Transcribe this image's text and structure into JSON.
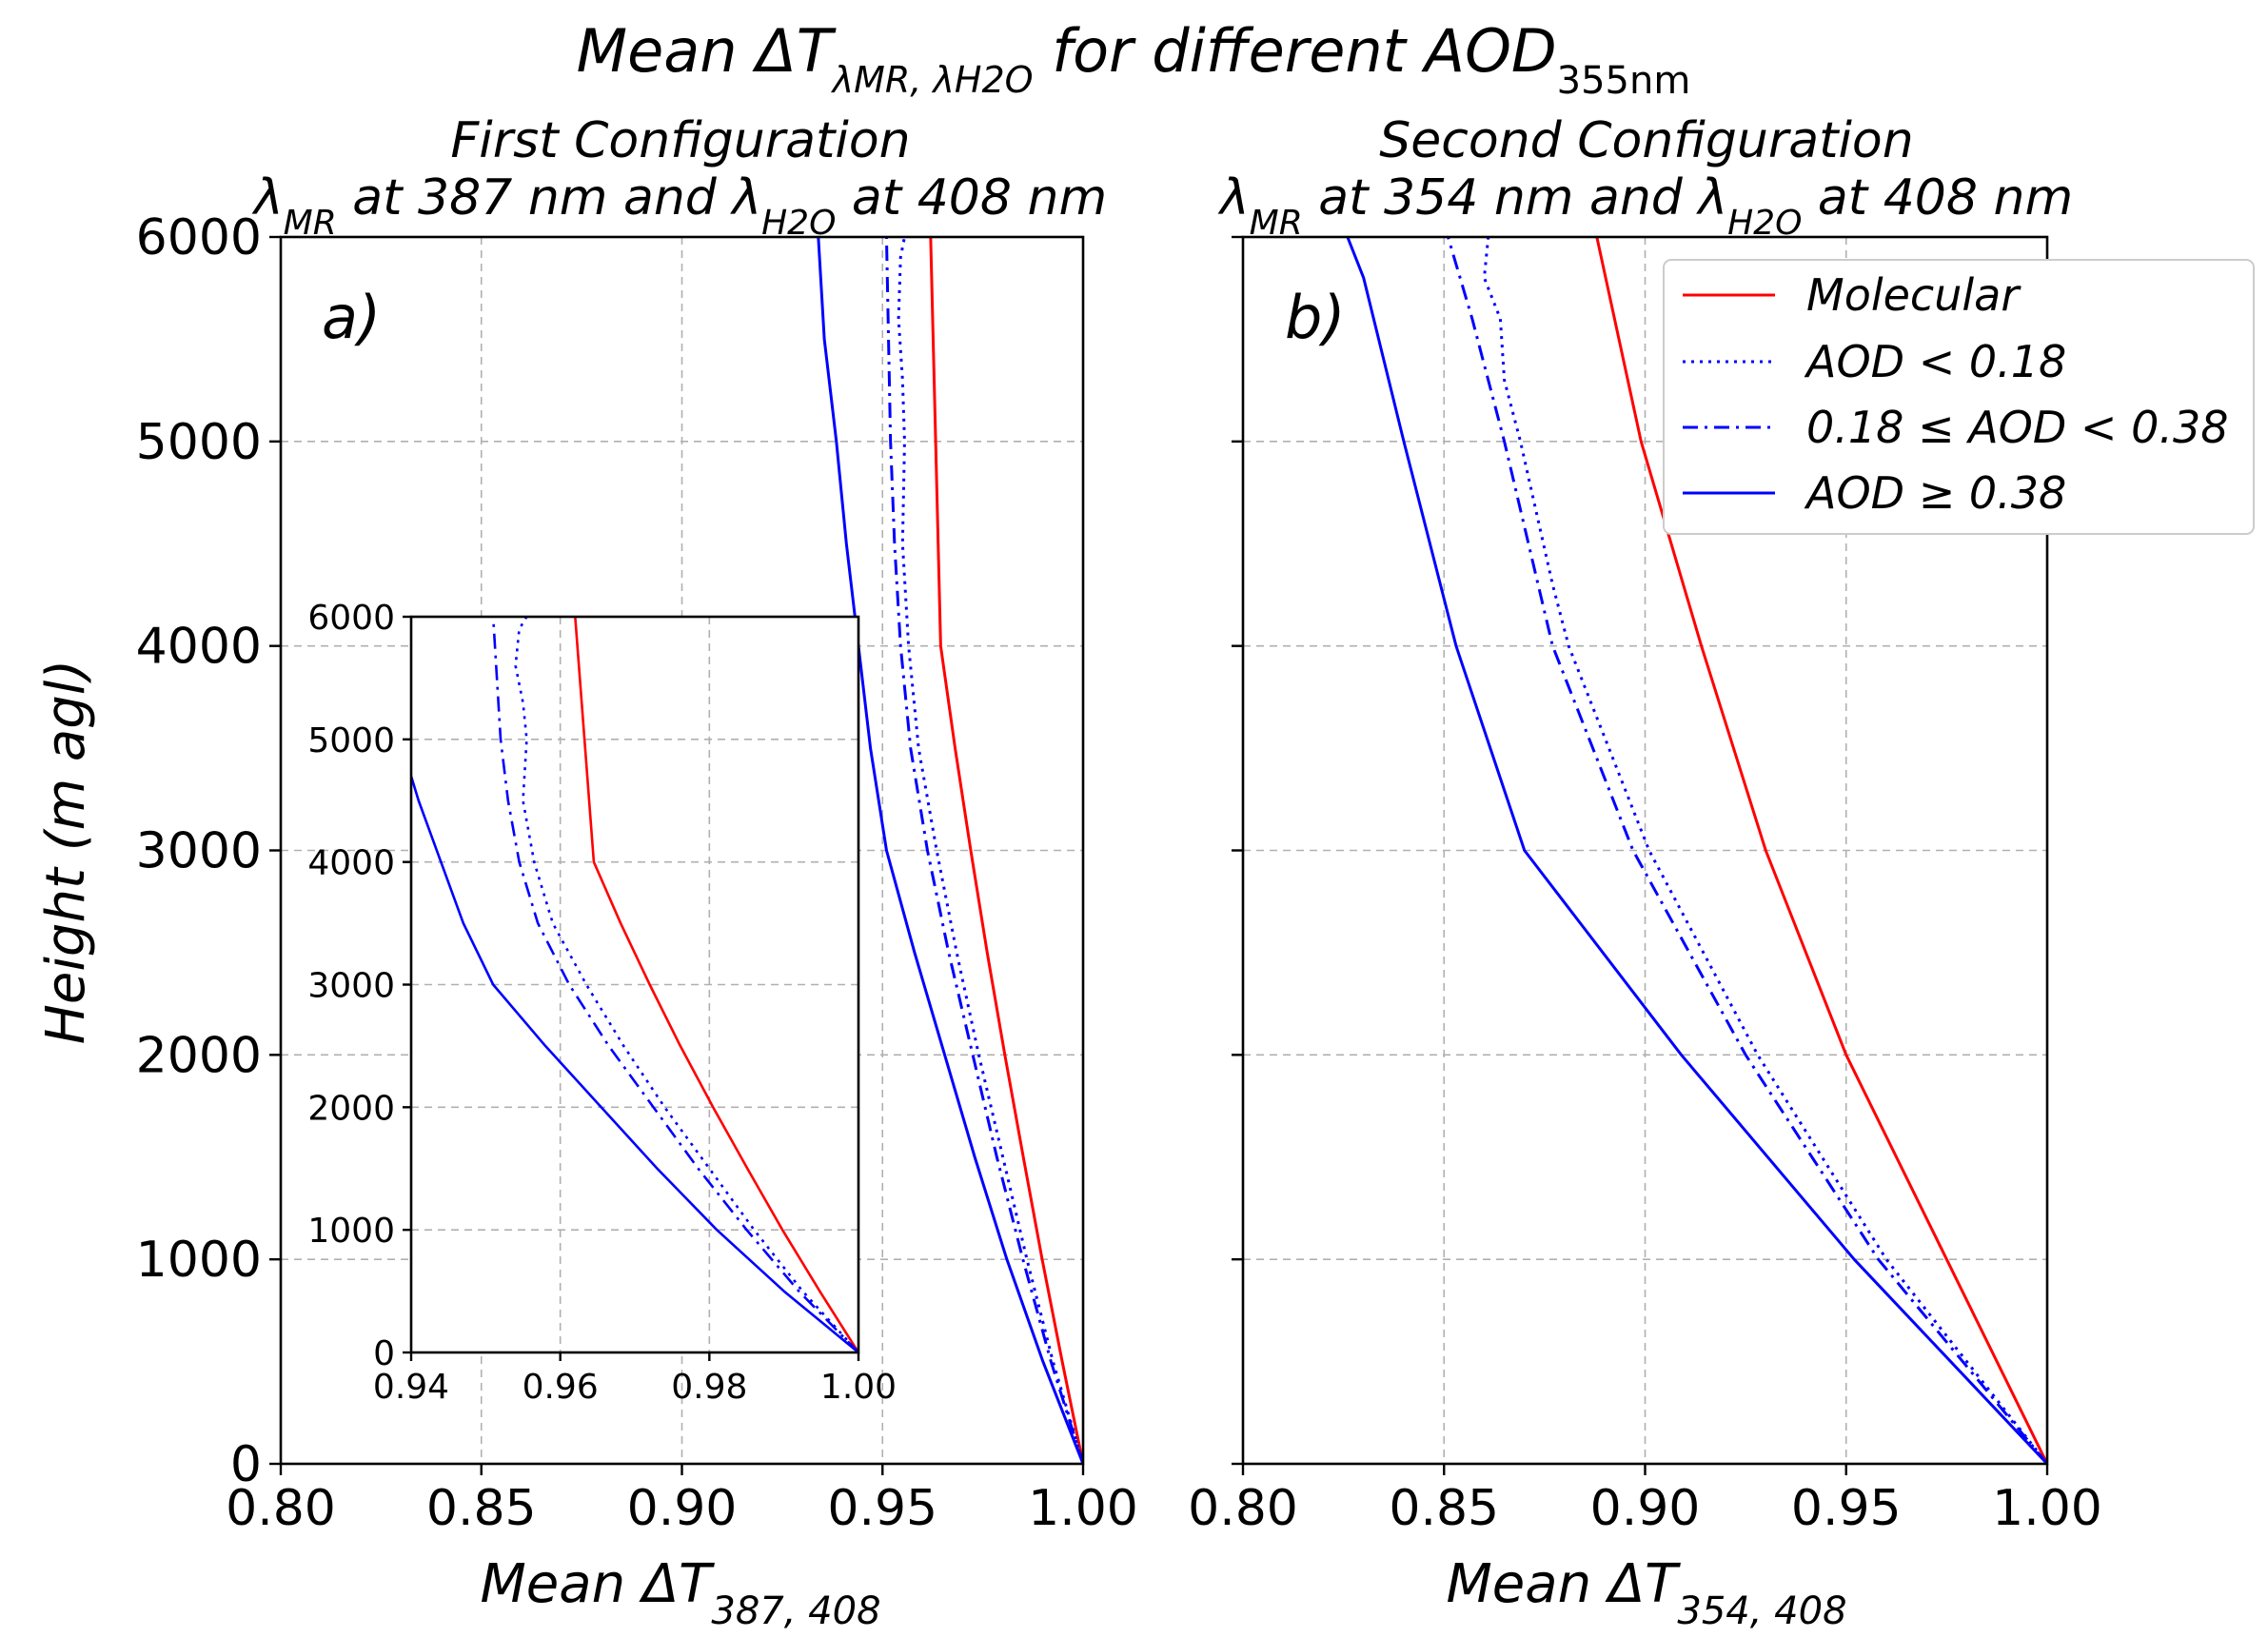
{
  "figure": {
    "title_prefix": "Mean ΔT",
    "title_subscript": "λMR, λH2O",
    "title_suffix": " for different AOD",
    "title_aod_subscript": "355nm"
  },
  "colors": {
    "molecular": "#ff0000",
    "aod": "#0000ff"
  },
  "legend": {
    "entries": [
      {
        "label": "Molecular",
        "style": "solid",
        "color": "#ff0000"
      },
      {
        "label": "AOD < 0.18",
        "style": "dotted",
        "color": "#0000ff"
      },
      {
        "label": "0.18 ≤ AOD < 0.38",
        "style": "dashdot",
        "color": "#0000ff"
      },
      {
        "label": "AOD ≥ 0.38",
        "style": "solid",
        "color": "#0000ff"
      }
    ]
  },
  "ylabel": "Height (m agl)",
  "chart_data": [
    {
      "type": "line",
      "panel_label": "a)",
      "title_line1": "First Configuration",
      "title_line2_parts": [
        "λ",
        "MR",
        " at 387 nm and λ",
        "H2O",
        " at 408 nm"
      ],
      "xlabel_prefix": "Mean ΔT",
      "xlabel_subscript": "387, 408",
      "xlim": [
        0.8,
        1.0
      ],
      "ylim": [
        0,
        6000
      ],
      "xticks": [
        "0.80",
        "0.85",
        "0.90",
        "0.95",
        "1.00"
      ],
      "yticks": [
        "0",
        "1000",
        "2000",
        "3000",
        "4000",
        "5000",
        "6000"
      ],
      "grid": true,
      "series": [
        {
          "name": "Molecular",
          "style": "solid",
          "color": "#ff0000",
          "x": [
            1.0,
            0.9948,
            0.9898,
            0.9851,
            0.9805,
            0.9761,
            0.972,
            0.9681,
            0.9645,
            0.962
          ],
          "y": [
            0,
            500,
            1000,
            1500,
            2000,
            2500,
            3000,
            3500,
            4000,
            6000
          ]
        },
        {
          "name": "AOD < 0.18",
          "style": "dotted",
          "color": "#0000ff",
          "x": [
            1.0,
            0.9925,
            0.986,
            0.98,
            0.974,
            0.9685,
            0.9635,
            0.959,
            0.9565,
            0.955,
            0.9555,
            0.955,
            0.954,
            0.9545,
            0.9555
          ],
          "y": [
            0,
            500,
            1000,
            1500,
            2000,
            2500,
            3000,
            3500,
            4000,
            4500,
            5000,
            5300,
            5600,
            5900,
            6000
          ]
        },
        {
          "name": "0.18 ≤ AOD < 0.38",
          "style": "dashdot",
          "color": "#0000ff",
          "x": [
            1.0,
            0.992,
            0.985,
            0.9785,
            0.9725,
            0.9665,
            0.9612,
            0.957,
            0.9545,
            0.953,
            0.952,
            0.951
          ],
          "y": [
            0,
            500,
            1000,
            1500,
            2000,
            2500,
            3000,
            3500,
            4000,
            4500,
            5000,
            6000
          ]
        },
        {
          "name": "AOD ≥ 0.38",
          "style": "solid",
          "color": "#0000ff",
          "x": [
            1.0,
            0.99,
            0.981,
            0.973,
            0.9655,
            0.958,
            0.951,
            0.947,
            0.944,
            0.941,
            0.9385,
            0.9355,
            0.934
          ],
          "y": [
            0,
            500,
            1000,
            1500,
            2000,
            2500,
            3000,
            3500,
            4000,
            4500,
            5000,
            5500,
            6000
          ]
        }
      ],
      "inset": {
        "xlim": [
          0.94,
          1.0
        ],
        "ylim": [
          0,
          6000
        ],
        "xticks": [
          "0.94",
          "0.96",
          "0.98",
          "1.00"
        ],
        "yticks": [
          "0",
          "1000",
          "2000",
          "3000",
          "4000",
          "5000",
          "6000"
        ],
        "grid": true
      }
    },
    {
      "type": "line",
      "panel_label": "b)",
      "title_line1": "Second Configuration",
      "title_line2_parts": [
        "λ",
        "MR",
        " at 354 nm and λ",
        "H2O",
        " at 408 nm"
      ],
      "xlabel_prefix": "Mean ΔT",
      "xlabel_subscript": "354, 408",
      "xlim": [
        0.8,
        1.0
      ],
      "ylim": [
        0,
        6000
      ],
      "xticks": [
        "0.80",
        "0.85",
        "0.90",
        "0.95",
        "1.00"
      ],
      "grid": true,
      "series": [
        {
          "name": "Molecular",
          "style": "solid",
          "color": "#ff0000",
          "x": [
            1.0,
            0.975,
            0.95,
            0.93,
            0.914,
            0.899,
            0.888
          ],
          "y": [
            0,
            1000,
            2000,
            3000,
            4000,
            5000,
            6000
          ]
        },
        {
          "name": "AOD < 0.18",
          "style": "dotted",
          "color": "#0000ff",
          "x": [
            1.0,
            0.96,
            0.928,
            0.901,
            0.881,
            0.877,
            0.869,
            0.865,
            0.864,
            0.86,
            0.861
          ],
          "y": [
            0,
            1000,
            2000,
            3000,
            4000,
            4300,
            5000,
            5300,
            5600,
            5800,
            6000
          ]
        },
        {
          "name": "0.18 ≤ AOD < 0.38",
          "style": "dashdot",
          "color": "#0000ff",
          "x": [
            1.0,
            0.958,
            0.925,
            0.897,
            0.877,
            0.865,
            0.857,
            0.851
          ],
          "y": [
            0,
            1000,
            2000,
            3000,
            4000,
            5000,
            5600,
            6000
          ]
        },
        {
          "name": "AOD ≥ 0.38",
          "style": "solid",
          "color": "#0000ff",
          "x": [
            1.0,
            0.952,
            0.909,
            0.87,
            0.853,
            0.84,
            0.83,
            0.826
          ],
          "y": [
            0,
            1000,
            2000,
            3000,
            4000,
            5000,
            5800,
            6000
          ]
        }
      ]
    }
  ]
}
